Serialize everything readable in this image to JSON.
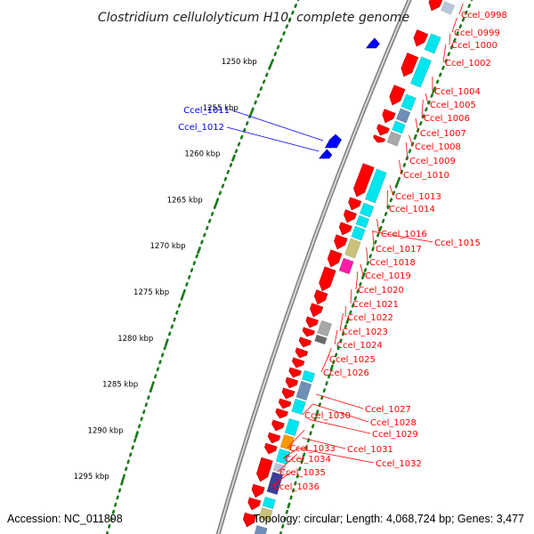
{
  "title": "Clostridium cellulolyticum H10, complete genome",
  "footer": {
    "accession": "Accession: NC_011898",
    "info": "Topology: circular; Length: 4,068,724 bp; Genes: 3,477"
  },
  "colors": {
    "background": "#ffffff",
    "backbone": "#808080",
    "forward_cds": "#ff0000",
    "reverse_cds": "#0000ff",
    "label_forward": "#ff0000",
    "label_reverse": "#0000ff",
    "ticks": "#1a7a1a",
    "cog_cyan": "#00e5ee",
    "cog_khaki": "#c8c278",
    "cog_magenta": "#ff1aaa",
    "cog_gray": "#a8a8a8",
    "cog_dark_gray": "#6a6a6a",
    "cog_steel": "#6f8fb7",
    "cog_orange": "#ff9900",
    "cog_indigo": "#3d3d9a",
    "cog_light": "#b9c6dc"
  },
  "ticks": [
    {
      "label": "1250 kbp"
    },
    {
      "label": "1255 kbp"
    },
    {
      "label": "1260 kbp"
    },
    {
      "label": "1265 kbp"
    },
    {
      "label": "1270 kbp"
    },
    {
      "label": "1275 kbp"
    },
    {
      "label": "1280 kbp"
    },
    {
      "label": "1285 kbp"
    },
    {
      "label": "1290 kbp"
    },
    {
      "label": "1295 kbp"
    }
  ],
  "reverse_genes": [
    {
      "label": "Ccel_1011"
    },
    {
      "label": "Ccel_1012"
    }
  ],
  "forward_genes": [
    {
      "label": "Ccel_0998"
    },
    {
      "label": "Ccel_0999"
    },
    {
      "label": "Ccel_1000"
    },
    {
      "label": "Ccel_1002"
    },
    {
      "label": "Ccel_1004"
    },
    {
      "label": "Ccel_1005"
    },
    {
      "label": "Ccel_1006"
    },
    {
      "label": "Ccel_1007"
    },
    {
      "label": "Ccel_1008"
    },
    {
      "label": "Ccel_1009"
    },
    {
      "label": "Ccel_1010"
    },
    {
      "label": "Ccel_1013"
    },
    {
      "label": "Ccel_1014"
    },
    {
      "label": "Ccel_1016"
    },
    {
      "label": "Ccel_1015"
    },
    {
      "label": "Ccel_1017"
    },
    {
      "label": "Ccel_1018"
    },
    {
      "label": "Ccel_1019"
    },
    {
      "label": "Ccel_1020"
    },
    {
      "label": "Ccel_1021"
    },
    {
      "label": "Ccel_1022"
    },
    {
      "label": "Ccel_1023"
    },
    {
      "label": "Ccel_1024"
    },
    {
      "label": "Ccel_1025"
    },
    {
      "label": "Ccel_1026"
    },
    {
      "label": "Ccel_1027"
    },
    {
      "label": "Ccel_1030"
    },
    {
      "label": "Ccel_1028"
    },
    {
      "label": "Ccel_1029"
    },
    {
      "label": "Ccel_1031"
    },
    {
      "label": "Ccel_1033"
    },
    {
      "label": "Ccel_1032"
    },
    {
      "label": "Ccel_1034"
    },
    {
      "label": "Ccel_1035"
    },
    {
      "label": "Ccel_1036"
    }
  ]
}
